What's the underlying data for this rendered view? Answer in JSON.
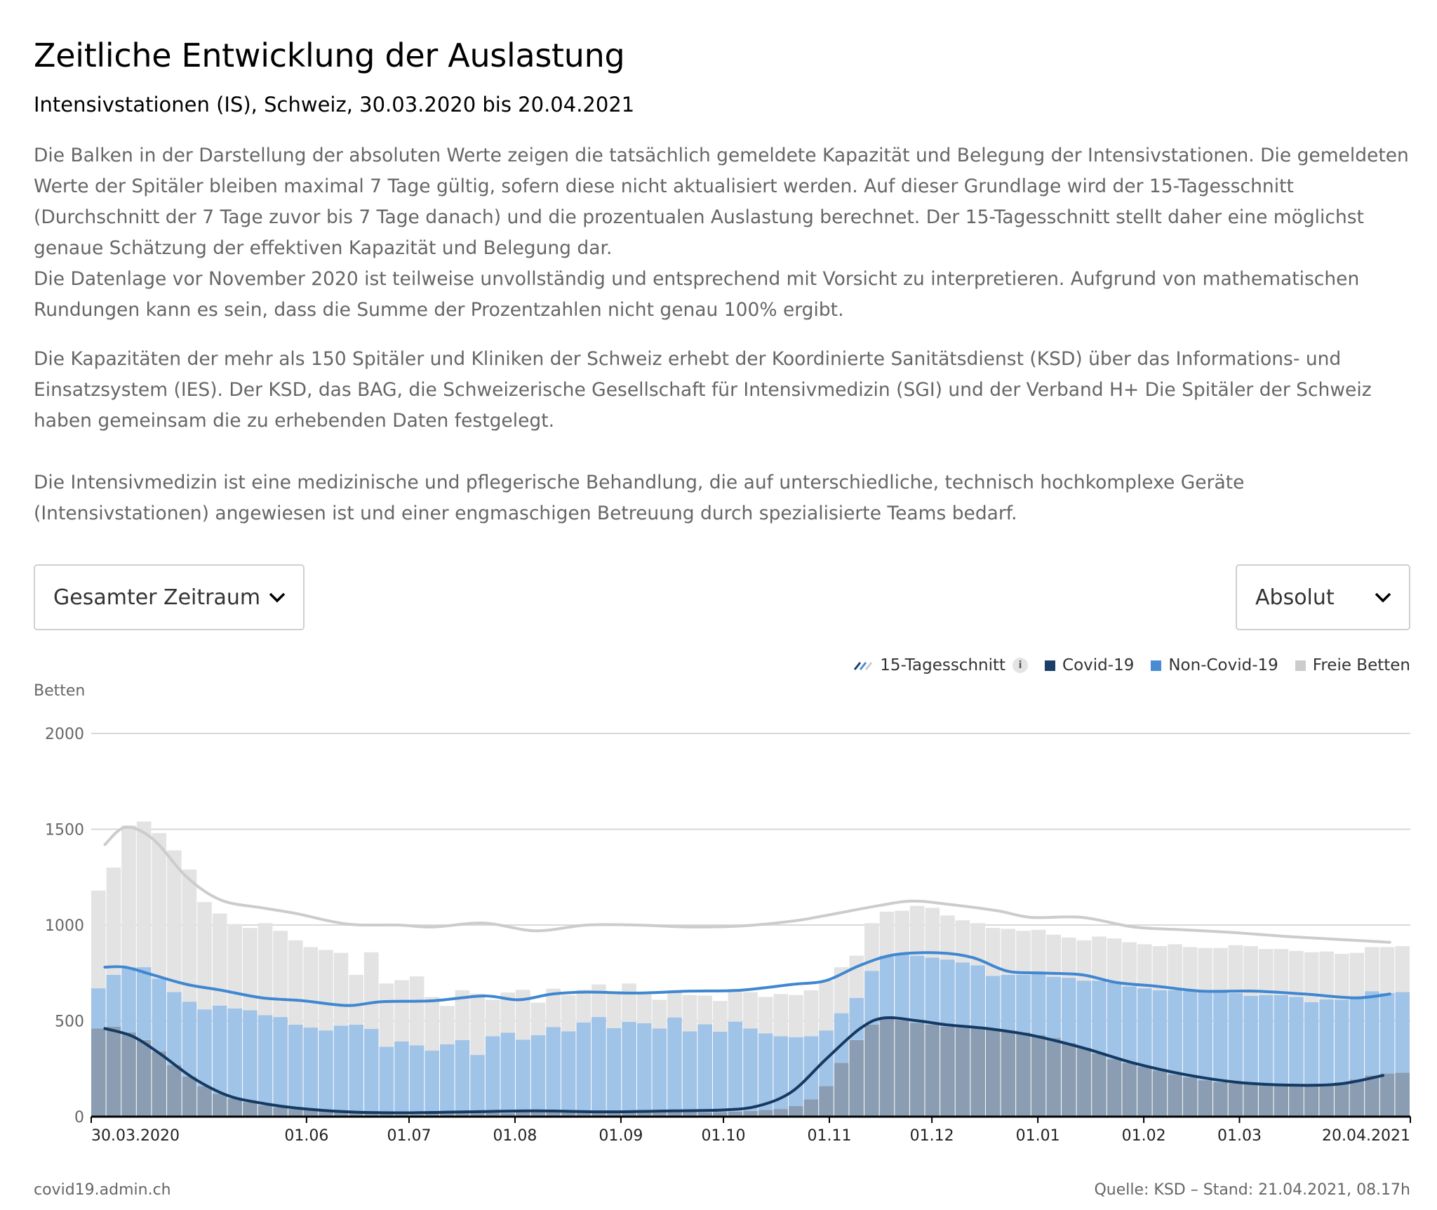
{
  "header": {
    "title": "Zeitliche Entwicklung der Auslastung",
    "subtitle": "Intensivstationen (IS), Schweiz, 30.03.2020 bis 20.04.2021"
  },
  "description": {
    "p1": "Die Balken in der Darstellung der absoluten Werte zeigen die tatsächlich gemeldete Kapazität und Belegung der Intensivstationen. Die gemeldeten Werte der Spitäler bleiben maximal 7 Tage gültig, sofern diese nicht aktualisiert werden. Auf dieser Grundlage wird der 15-Tagesschnitt (Durchschnitt der 7 Tage zuvor bis 7 Tage danach) und die prozentualen Auslastung berechnet. Der 15-Tagesschnitt stellt daher eine möglichst genaue Schätzung der effektiven Kapazität und Belegung dar.",
    "p1b": "Die Datenlage vor November 2020 ist teilweise unvollständig und entsprechend mit Vorsicht zu interpretieren. Aufgrund von mathematischen Rundungen kann es sein, dass die Summe der Prozentzahlen nicht genau 100% ergibt.",
    "p2": "Die Kapazitäten der mehr als 150 Spitäler und Kliniken der Schweiz erhebt der Koordinierte Sanitätsdienst (KSD) über das Informations- und Einsatzsystem (IES). Der KSD, das BAG, die Schweizerische Gesellschaft für Intensivmedizin (SGI) und der Verband H+ Die Spitäler der Schweiz haben gemeinsam die zu erhebenden Daten festgelegt.",
    "p3": "Die Intensivmedizin ist eine medizinische und pflegerische Behandlung, die auf unterschiedliche, technisch hochkomplexe Geräte (Intensivstationen) angewiesen ist und einer engmaschigen Betreuung durch spezialisierte Teams bedarf."
  },
  "controls": {
    "time_range": {
      "selected": "Gesamter Zeitraum",
      "icon": "chevron-down-icon"
    },
    "mode": {
      "selected": "Absolut",
      "icon": "chevron-down-icon"
    }
  },
  "legend": [
    {
      "label": "15-Tagesschnitt",
      "icon": "moving-average-icon",
      "has_info": true
    },
    {
      "label": "Covid-19",
      "color": "#1b3f66"
    },
    {
      "label": "Non-Covid-19",
      "color": "#4a8cd4"
    },
    {
      "label": "Freie Betten",
      "color": "#cccccc"
    }
  ],
  "footer": {
    "source_site": "covid19.admin.ch",
    "source": "Quelle: KSD – Stand: 21.04.2021, 08.17h"
  },
  "colors": {
    "covid_bar": "#8a9db2",
    "noncovid_bar": "#a0c3e8",
    "free_bar": "#e3e3e3",
    "covid_line": "#143a63",
    "noncovid_line": "#3f87d0",
    "total_line": "#cccccc",
    "grid": "#d9d9d9",
    "axis": "#000000"
  },
  "chart_data": {
    "type": "bar",
    "stacked": true,
    "title": "Zeitliche Entwicklung der Auslastung",
    "ylabel": "Betten",
    "xlabel": "",
    "ylim": [
      0,
      2000
    ],
    "yticks": [
      0,
      500,
      1000,
      1500,
      2000
    ],
    "grid": true,
    "legend_position": "top-right",
    "x_start": "30.03.2020",
    "x_end": "20.04.2021",
    "total_days": 387,
    "xticks": [
      {
        "day": 0,
        "label": "30.03.2020"
      },
      {
        "day": 63,
        "label": "01.06"
      },
      {
        "day": 93,
        "label": "01.07"
      },
      {
        "day": 124,
        "label": "01.08"
      },
      {
        "day": 155,
        "label": "01.09"
      },
      {
        "day": 185,
        "label": "01.10"
      },
      {
        "day": 216,
        "label": "01.11"
      },
      {
        "day": 246,
        "label": "01.12"
      },
      {
        "day": 277,
        "label": "01.01"
      },
      {
        "day": 308,
        "label": "01.02"
      },
      {
        "day": 336,
        "label": "01.03"
      },
      {
        "day": 386,
        "label": "20.04.2021"
      }
    ],
    "bar_step_days": 4,
    "series": [
      {
        "name": "Covid-19",
        "values": [
          460,
          470,
          440,
          400,
          340,
          270,
          210,
          160,
          120,
          95,
          75,
          60,
          50,
          40,
          35,
          30,
          25,
          20,
          18,
          15,
          12,
          12,
          15,
          18,
          20,
          22,
          20,
          18,
          22,
          25,
          28,
          25,
          22,
          20,
          22,
          25,
          28,
          30,
          28,
          25,
          22,
          24,
          26,
          30,
          35,
          40,
          55,
          90,
          160,
          280,
          400,
          480,
          510,
          505,
          490,
          480,
          470,
          465,
          460,
          455,
          450,
          440,
          425,
          410,
          385,
          360,
          330,
          300,
          280,
          260,
          240,
          220,
          205,
          190,
          180,
          175,
          170,
          165,
          165,
          165,
          168,
          172,
          180,
          195,
          215,
          225,
          230
        ]
      },
      {
        "name": "Non-Covid-19",
        "values": [
          210,
          270,
          340,
          380,
          380,
          380,
          390,
          400,
          460,
          470,
          480,
          470,
          470,
          440,
          430,
          420,
          450,
          460,
          440,
          350,
          380,
          360,
          330,
          360,
          380,
          300,
          400,
          420,
          380,
          400,
          440,
          420,
          470,
          500,
          440,
          470,
          460,
          430,
          490,
          420,
          460,
          420,
          470,
          430,
          400,
          380,
          360,
          330,
          290,
          260,
          220,
          280,
          330,
          340,
          350,
          350,
          350,
          340,
          330,
          280,
          290,
          300,
          320,
          320,
          340,
          350,
          380,
          400,
          400,
          410,
          420,
          440,
          450,
          460,
          470,
          470,
          460,
          470,
          470,
          460,
          430,
          440,
          430,
          420,
          440,
          420,
          420
        ]
      },
      {
        "name": "Freie Betten",
        "values": [
          510,
          560,
          740,
          760,
          760,
          740,
          690,
          560,
          480,
          440,
          430,
          480,
          450,
          440,
          420,
          420,
          380,
          260,
          400,
          330,
          320,
          360,
          280,
          200,
          260,
          320,
          190,
          210,
          260,
          170,
          200,
          190,
          170,
          170,
          180,
          200,
          160,
          150,
          140,
          190,
          150,
          160,
          170,
          190,
          190,
          220,
          220,
          240,
          260,
          240,
          220,
          250,
          230,
          230,
          260,
          260,
          230,
          220,
          220,
          250,
          240,
          230,
          230,
          220,
          210,
          210,
          230,
          230,
          230,
          230,
          230,
          240,
          230,
          230,
          230,
          250,
          260,
          240,
          240,
          240,
          260,
          250,
          240,
          240,
          230,
          240,
          240
        ]
      }
    ],
    "lines": [
      {
        "name": "15-Tagesschnitt Total",
        "points": [
          [
            4,
            1420
          ],
          [
            10,
            1510
          ],
          [
            18,
            1450
          ],
          [
            28,
            1250
          ],
          [
            38,
            1130
          ],
          [
            50,
            1090
          ],
          [
            60,
            1060
          ],
          [
            75,
            1005
          ],
          [
            90,
            1000
          ],
          [
            100,
            990
          ],
          [
            115,
            1010
          ],
          [
            130,
            970
          ],
          [
            145,
            1000
          ],
          [
            160,
            1000
          ],
          [
            175,
            990
          ],
          [
            190,
            995
          ],
          [
            205,
            1020
          ],
          [
            215,
            1050
          ],
          [
            230,
            1100
          ],
          [
            240,
            1125
          ],
          [
            250,
            1110
          ],
          [
            265,
            1075
          ],
          [
            275,
            1040
          ],
          [
            290,
            1040
          ],
          [
            305,
            990
          ],
          [
            320,
            975
          ],
          [
            335,
            960
          ],
          [
            350,
            940
          ],
          [
            365,
            925
          ],
          [
            380,
            910
          ]
        ]
      },
      {
        "name": "15-Tagesschnitt Covid-19 + Non-Covid-19",
        "points": [
          [
            4,
            780
          ],
          [
            10,
            780
          ],
          [
            18,
            740
          ],
          [
            28,
            690
          ],
          [
            38,
            660
          ],
          [
            50,
            620
          ],
          [
            62,
            605
          ],
          [
            75,
            580
          ],
          [
            85,
            600
          ],
          [
            100,
            605
          ],
          [
            115,
            630
          ],
          [
            125,
            610
          ],
          [
            135,
            640
          ],
          [
            145,
            650
          ],
          [
            160,
            645
          ],
          [
            175,
            655
          ],
          [
            190,
            660
          ],
          [
            205,
            690
          ],
          [
            215,
            710
          ],
          [
            225,
            790
          ],
          [
            235,
            845
          ],
          [
            248,
            855
          ],
          [
            258,
            830
          ],
          [
            268,
            760
          ],
          [
            278,
            750
          ],
          [
            290,
            740
          ],
          [
            300,
            700
          ],
          [
            312,
            680
          ],
          [
            325,
            655
          ],
          [
            340,
            655
          ],
          [
            355,
            640
          ],
          [
            370,
            620
          ],
          [
            380,
            640
          ]
        ]
      },
      {
        "name": "15-Tagesschnitt Covid-19",
        "points": [
          [
            4,
            460
          ],
          [
            12,
            420
          ],
          [
            20,
            330
          ],
          [
            30,
            200
          ],
          [
            40,
            110
          ],
          [
            50,
            70
          ],
          [
            60,
            45
          ],
          [
            75,
            25
          ],
          [
            90,
            20
          ],
          [
            110,
            25
          ],
          [
            130,
            30
          ],
          [
            150,
            25
          ],
          [
            170,
            30
          ],
          [
            185,
            35
          ],
          [
            195,
            55
          ],
          [
            205,
            130
          ],
          [
            215,
            300
          ],
          [
            225,
            460
          ],
          [
            232,
            515
          ],
          [
            242,
            500
          ],
          [
            250,
            480
          ],
          [
            262,
            460
          ],
          [
            275,
            425
          ],
          [
            290,
            360
          ],
          [
            305,
            280
          ],
          [
            320,
            220
          ],
          [
            335,
            180
          ],
          [
            350,
            165
          ],
          [
            365,
            170
          ],
          [
            378,
            215
          ]
        ]
      }
    ]
  }
}
